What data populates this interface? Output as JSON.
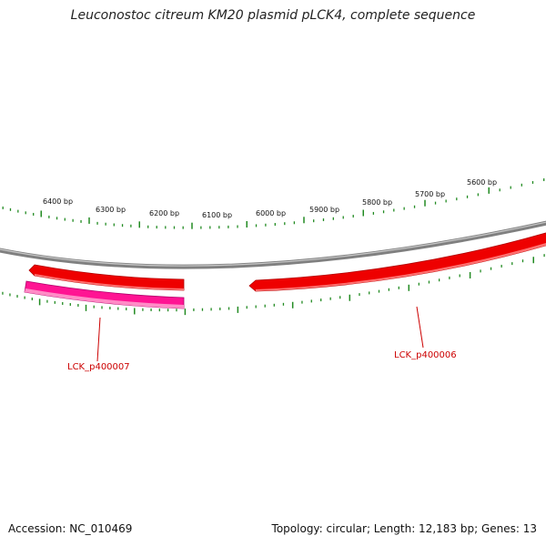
{
  "title": "Leuconostoc citreum KM20 plasmid pLCK4, complete sequence",
  "accession_line": "Accession: NC_010469",
  "summary_line": "Topology: circular; Length: 12,183 bp; Genes: 13",
  "scale_labels": [
    "6400 bp",
    "6300 bp",
    "6200 bp",
    "6100 bp",
    "6000 bp",
    "5900 bp",
    "5800 bp",
    "5700 bp",
    "5600 bp"
  ],
  "genes": [
    {
      "label": "LCK_p400007",
      "color": "#ff1493"
    },
    {
      "label": "LCK_p400006",
      "color": "#ff0000"
    }
  ],
  "colors": {
    "backbone": "#808080",
    "ticks": "#228b22",
    "gene_red": "#ee0000",
    "gene_pink": "#ff1493",
    "label": "#cc0000"
  }
}
